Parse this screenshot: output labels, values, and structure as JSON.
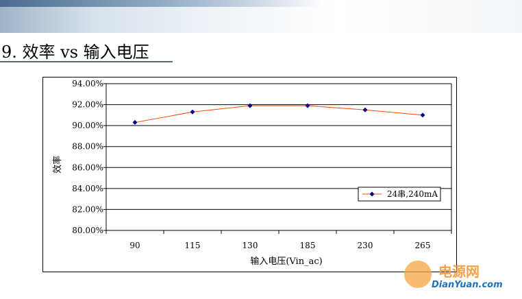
{
  "slide": {
    "title": "9. 效率 vs 输入电压"
  },
  "watermark": {
    "cn": "电源网",
    "en": "DianYuan.com"
  },
  "colors": {
    "series_line": "#ff4500",
    "series_marker": "#000080",
    "grid": "#000000"
  },
  "chart_data": {
    "type": "line",
    "title": "",
    "xlabel": "输入电压(Vin_ac)",
    "ylabel": "效率",
    "categories": [
      "90",
      "115",
      "130",
      "185",
      "230",
      "265"
    ],
    "ylim": [
      80,
      94
    ],
    "yticks": [
      "94.00%",
      "92.00%",
      "90.00%",
      "88.00%",
      "86.00%",
      "84.00%",
      "82.00%",
      "80.00%"
    ],
    "grid": true,
    "legend_position": "right",
    "series": [
      {
        "name": "24串,240mA",
        "values": [
          90.3,
          91.3,
          91.9,
          91.9,
          91.5,
          91.0
        ]
      }
    ]
  }
}
